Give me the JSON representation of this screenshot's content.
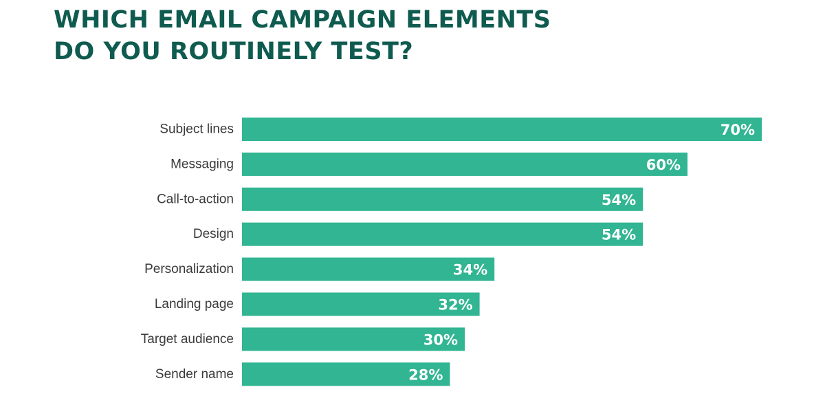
{
  "title_lines": [
    "WHICH EMAIL CAMPAIGN ELEMENTS",
    "DO YOU ROUTINELY TEST?"
  ],
  "colors": {
    "title": "#0f5b4f",
    "bar": "#31b592",
    "value_label": "#ffffff",
    "category_label": "#3a3a3a"
  },
  "chart_data": {
    "type": "bar",
    "orientation": "horizontal",
    "title": "WHICH EMAIL CAMPAIGN ELEMENTS DO YOU ROUTINELY TEST?",
    "categories": [
      "Subject lines",
      "Messaging",
      "Call-to-action",
      "Design",
      "Personalization",
      "Landing page",
      "Target audience",
      "Sender name"
    ],
    "values": [
      70,
      60,
      54,
      54,
      34,
      32,
      30,
      28
    ],
    "value_labels": [
      "70%",
      "60%",
      "54%",
      "54%",
      "34%",
      "32%",
      "30%",
      "28%"
    ],
    "unit": "%",
    "xlabel": "",
    "ylabel": "",
    "grid": false,
    "legend": "none"
  }
}
